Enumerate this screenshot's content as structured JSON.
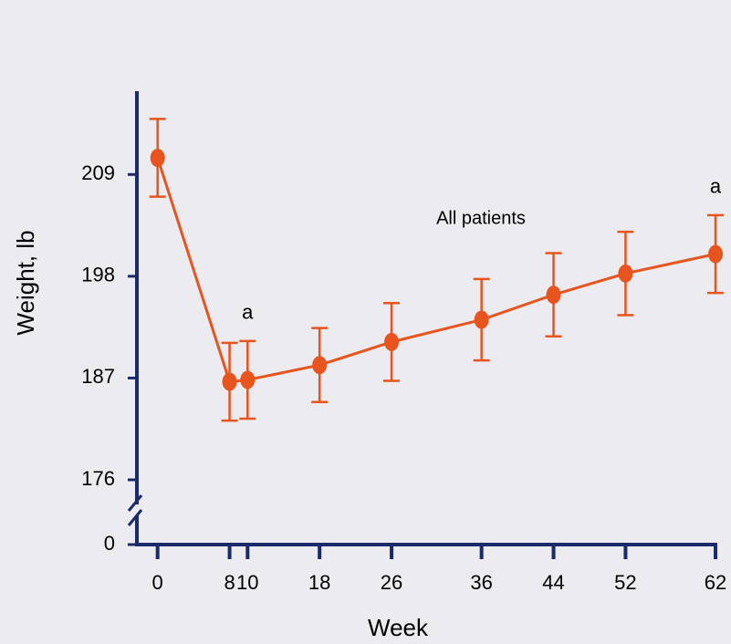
{
  "chart_data": {
    "type": "line",
    "x_label": "Week",
    "y_label": "Weight, lb",
    "x": [
      0,
      8,
      10,
      18,
      26,
      36,
      44,
      52,
      62
    ],
    "xticks": [
      0,
      8,
      10,
      18,
      26,
      36,
      44,
      52,
      62
    ],
    "xlim": [
      -2.3,
      62.2
    ],
    "series": [
      {
        "name": "All patients",
        "color": "#e8541e",
        "values": [
          210.8,
          186.6,
          186.8,
          188.4,
          190.9,
          193.3,
          196,
          198.3,
          200.4
        ],
        "errors": [
          4.2,
          4.2,
          4.2,
          4,
          4.2,
          4.4,
          4.5,
          4.5,
          4.2
        ]
      }
    ],
    "ylim": [
      0,
      218
    ],
    "y_break": 169,
    "yticks": [
      0,
      176,
      187,
      198,
      209
    ],
    "annotations": [
      {
        "text": "a",
        "x": 10
      },
      {
        "text": "a",
        "x": 62
      }
    ],
    "axis_color": "#1b2a6b"
  }
}
